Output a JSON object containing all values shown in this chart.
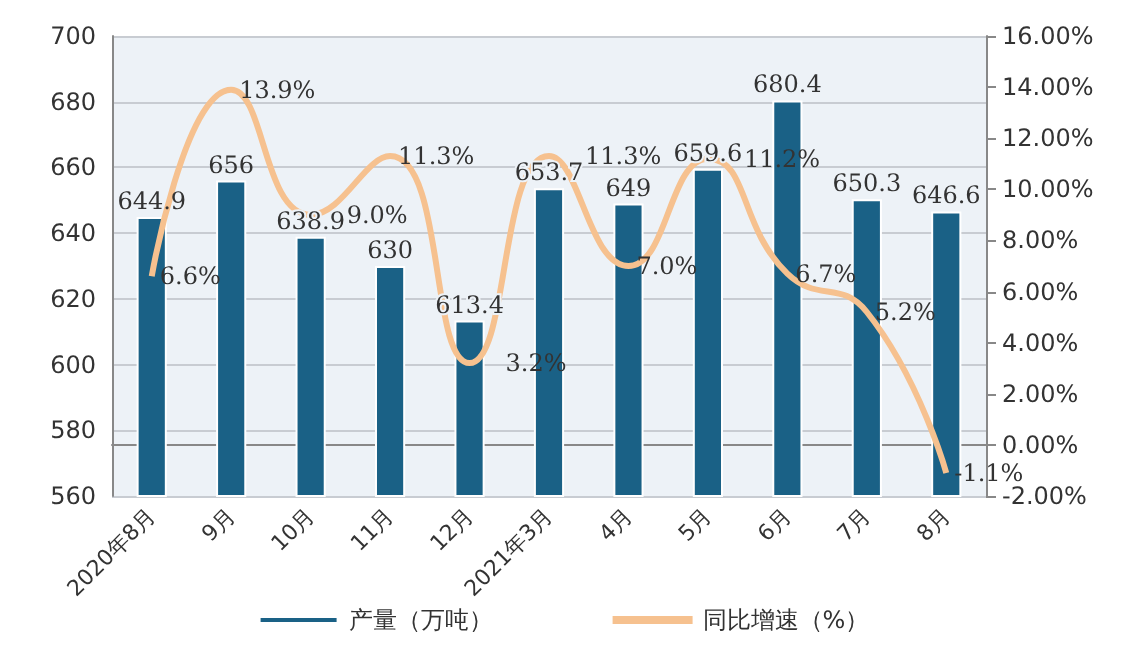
{
  "chart_data": {
    "type": "bar",
    "categories": [
      "2020年8月",
      "9月",
      "10月",
      "11月",
      "12月",
      "2021年3月",
      "4月",
      "5月",
      "6月",
      "7月",
      "8月"
    ],
    "series": [
      {
        "name": "产量（万吨）",
        "type": "bar",
        "color": "#1a6186",
        "values": [
          644.9,
          656,
          638.9,
          630,
          613.4,
          653.7,
          649,
          659.6,
          680.4,
          650.3,
          646.6
        ],
        "data_labels": true
      },
      {
        "name": "同比增速（%）",
        "type": "line",
        "axis": "y2",
        "color": "#f6c18f",
        "values": [
          6.6,
          13.9,
          9.0,
          11.3,
          3.2,
          11.3,
          7.0,
          11.2,
          6.7,
          5.2,
          -1.1
        ],
        "value_labels": [
          "6.6%",
          "13.9%",
          "9.0%",
          "11.3%",
          "3.2%",
          "11.3%",
          "7.0%",
          "11.2%",
          "6.7%",
          "5.2%",
          "-1.1%"
        ]
      }
    ],
    "ylim": [
      560,
      700
    ],
    "yticks": [
      560,
      580,
      600,
      620,
      640,
      660,
      680,
      700
    ],
    "y2lim": [
      -2,
      16
    ],
    "y2ticks": [
      {
        "value": -2,
        "label": "-2.00%"
      },
      {
        "value": 0,
        "label": "0.00%"
      },
      {
        "value": 2,
        "label": "2.00%"
      },
      {
        "value": 4,
        "label": "4.00%"
      },
      {
        "value": 6,
        "label": "6.00%"
      },
      {
        "value": 8,
        "label": "8.00%"
      },
      {
        "value": 10,
        "label": "10.00%"
      },
      {
        "value": 12,
        "label": "12.00%"
      },
      {
        "value": 14,
        "label": "14.00%"
      },
      {
        "value": 16,
        "label": "16.00%"
      }
    ],
    "grid": "y",
    "legend": "bottom",
    "marker": "none"
  }
}
